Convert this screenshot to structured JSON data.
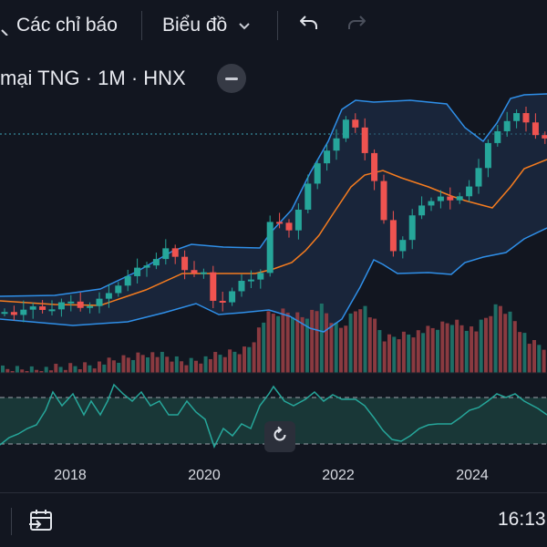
{
  "toolbar": {
    "indicators_label": "Các chỉ báo",
    "chart_type_label": "Biểu đồ",
    "undo_icon": "undo-icon",
    "redo_icon": "redo-icon",
    "dropdown_icon": "chevron-down-icon"
  },
  "legend": {
    "title": "mại TNG · 1M · HNX"
  },
  "x_axis": {
    "labels": [
      "2018",
      "2020",
      "2022",
      "2024"
    ]
  },
  "status_bar": {
    "time": "16:13",
    "go_to_date_icon": "calendar-goto-icon"
  },
  "colors": {
    "background": "#121620",
    "up_candle": "#26a69a",
    "down_candle": "#ef5350",
    "bollinger_band": "#2f8fe8",
    "bollinger_basis": "#f57c1f",
    "oscillator": "#26a69a"
  },
  "chart_data": {
    "type": "candlestick",
    "interval": "1M",
    "symbol": "TNG",
    "exchange": "HNX",
    "x_ticks": [
      "2018",
      "2020",
      "2022",
      "2024"
    ],
    "overlays": [
      "Bollinger Bands upper",
      "Bollinger Bands basis",
      "Bollinger Bands lower"
    ],
    "panes": [
      "price",
      "volume",
      "oscillator"
    ]
  }
}
